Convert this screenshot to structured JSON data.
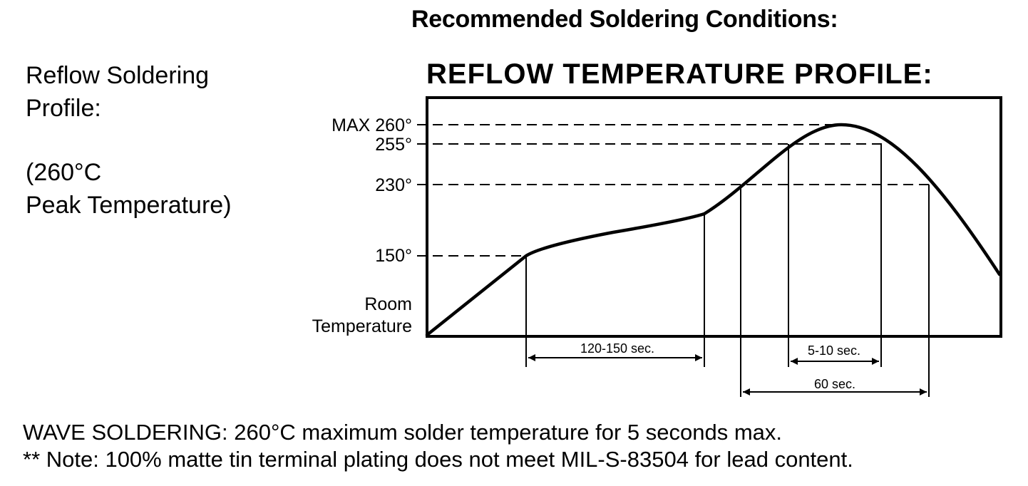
{
  "heading": "Recommended Soldering Conditions:",
  "side_label": {
    "line1": "Reflow Soldering",
    "line2": "Profile:",
    "line3": "(260°C",
    "line4": "Peak Temperature)"
  },
  "profile": {
    "title": "REFLOW TEMPERATURE PROFILE:",
    "y_labels": {
      "max": "MAX 260°",
      "t255": "255°",
      "t230": "230°",
      "t150": "150°",
      "room_1": "Room",
      "room_2": "Temperature"
    },
    "durations": {
      "preheat": "120-150 sec.",
      "peak": "5-10 sec.",
      "above_230": "60 sec."
    }
  },
  "notes": {
    "wave": "WAVE SOLDERING: 260°C maximum solder temperature for 5 seconds max.",
    "tin": "** Note: 100% matte tin terminal plating does not meet MIL-S-83504 for lead content."
  }
}
